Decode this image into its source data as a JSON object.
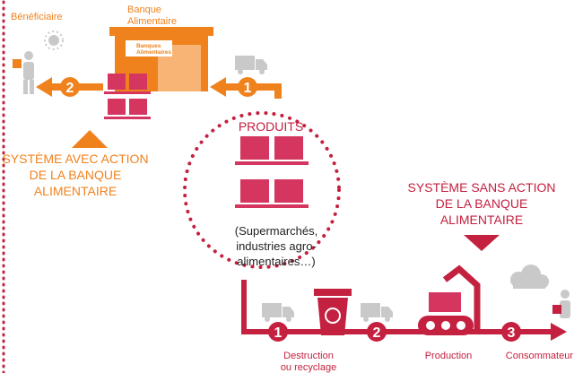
{
  "left": {
    "beneficiary": "Bénéficiaire",
    "bank_label": [
      "Banque",
      "Alimentaire"
    ],
    "logo": [
      "Banques",
      "Alimentaires"
    ],
    "step_1": "1",
    "step_2": "2",
    "system_title": [
      "SYSTÈME AVEC ACTION",
      "DE LA BANQUE",
      "ALIMENTAIRE"
    ]
  },
  "center": {
    "title": "PRODUITS",
    "sources": [
      "(Supermarchés,",
      "industries agro-",
      "alimentaires…)"
    ]
  },
  "right": {
    "system_title": [
      "SYSTÈME SANS ACTION",
      "DE LA BANQUE",
      "ALIMENTAIRE"
    ],
    "steps": [
      "1",
      "2",
      "3"
    ],
    "destruction": [
      "Destruction",
      "ou recyclage"
    ],
    "production": "Production",
    "consumer": "Consommateur"
  }
}
